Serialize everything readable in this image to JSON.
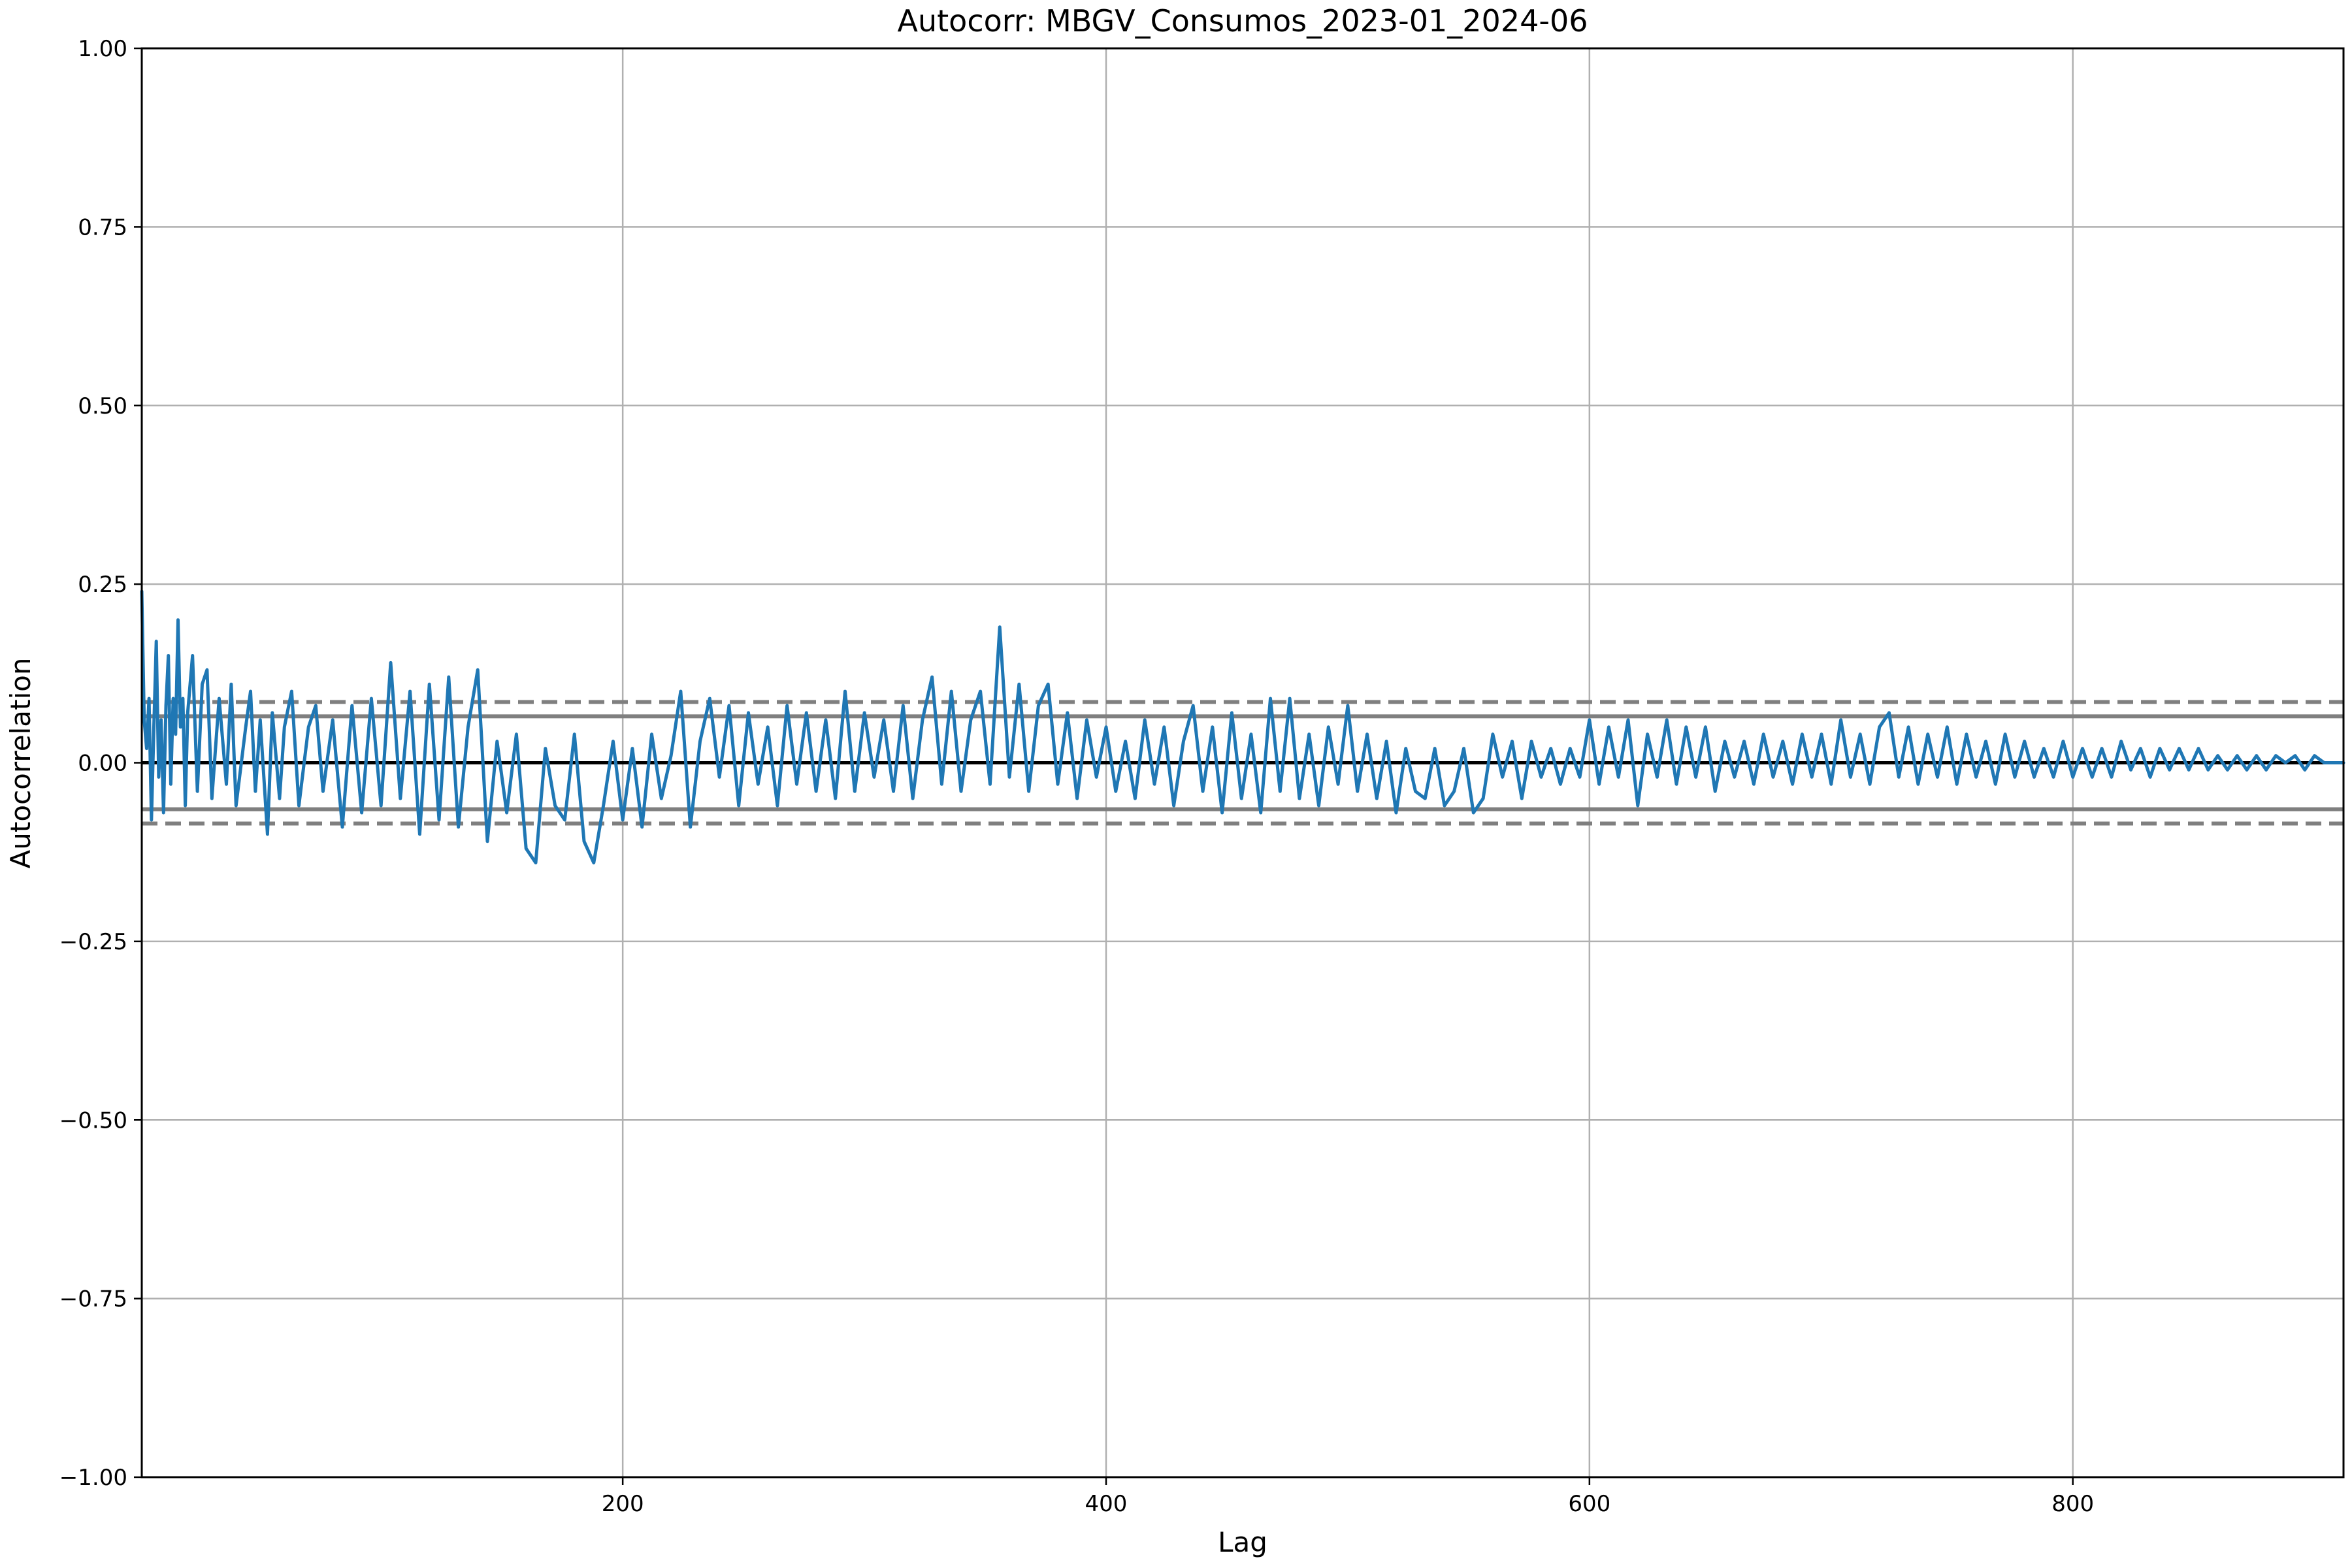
{
  "chart_data": {
    "type": "line",
    "title": "Autocorr: MBGV_Consumos_2023-01_2024-06",
    "xlabel": "Lag",
    "ylabel": "Autocorrelation",
    "xlim": [
      1,
      912
    ],
    "ylim": [
      -1.0,
      1.0
    ],
    "grid": true,
    "x_ticks": [
      {
        "value": 200,
        "label": "200"
      },
      {
        "value": 400,
        "label": "400"
      },
      {
        "value": 600,
        "label": "600"
      },
      {
        "value": 800,
        "label": "800"
      }
    ],
    "y_ticks": [
      {
        "value": 1.0,
        "label": "1.00"
      },
      {
        "value": 0.75,
        "label": "0.75"
      },
      {
        "value": 0.5,
        "label": "0.50"
      },
      {
        "value": 0.25,
        "label": "0.25"
      },
      {
        "value": 0.0,
        "label": "0.00"
      },
      {
        "value": -0.25,
        "label": "−0.25"
      },
      {
        "value": -0.5,
        "label": "−0.50"
      },
      {
        "value": -0.75,
        "label": "−0.75"
      },
      {
        "value": -1.0,
        "label": "−1.00"
      }
    ],
    "reference_lines": [
      {
        "name": "confidence-99-upper",
        "value": 0.085,
        "style": "dashed"
      },
      {
        "name": "confidence-95-upper",
        "value": 0.065,
        "style": "solid"
      },
      {
        "name": "zero",
        "value": 0.0,
        "style": "solid-black"
      },
      {
        "name": "confidence-95-lower",
        "value": -0.065,
        "style": "solid"
      },
      {
        "name": "confidence-99-lower",
        "value": -0.085,
        "style": "dashed"
      }
    ],
    "series": [
      {
        "name": "autocorrelation",
        "color": "#1f77b4",
        "points": [
          [
            1,
            0.24
          ],
          [
            2,
            0.06
          ],
          [
            3,
            0.02
          ],
          [
            4,
            0.09
          ],
          [
            5,
            -0.08
          ],
          [
            6,
            0.05
          ],
          [
            7,
            0.17
          ],
          [
            8,
            -0.02
          ],
          [
            9,
            0.06
          ],
          [
            10,
            -0.07
          ],
          [
            11,
            0.08
          ],
          [
            12,
            0.15
          ],
          [
            13,
            -0.03
          ],
          [
            14,
            0.09
          ],
          [
            15,
            0.04
          ],
          [
            16,
            0.2
          ],
          [
            17,
            0.05
          ],
          [
            18,
            0.09
          ],
          [
            19,
            -0.06
          ],
          [
            20,
            0.07
          ],
          [
            22,
            0.15
          ],
          [
            24,
            -0.04
          ],
          [
            26,
            0.11
          ],
          [
            28,
            0.13
          ],
          [
            30,
            -0.05
          ],
          [
            33,
            0.09
          ],
          [
            36,
            -0.03
          ],
          [
            38,
            0.11
          ],
          [
            40,
            -0.06
          ],
          [
            44,
            0.05
          ],
          [
            46,
            0.1
          ],
          [
            48,
            -0.04
          ],
          [
            50,
            0.06
          ],
          [
            53,
            -0.1
          ],
          [
            55,
            0.07
          ],
          [
            58,
            -0.05
          ],
          [
            60,
            0.05
          ],
          [
            63,
            0.1
          ],
          [
            66,
            -0.06
          ],
          [
            70,
            0.05
          ],
          [
            73,
            0.08
          ],
          [
            76,
            -0.04
          ],
          [
            80,
            0.06
          ],
          [
            84,
            -0.09
          ],
          [
            88,
            0.08
          ],
          [
            92,
            -0.07
          ],
          [
            96,
            0.09
          ],
          [
            100,
            -0.06
          ],
          [
            104,
            0.14
          ],
          [
            108,
            -0.05
          ],
          [
            112,
            0.1
          ],
          [
            116,
            -0.1
          ],
          [
            120,
            0.11
          ],
          [
            124,
            -0.08
          ],
          [
            128,
            0.12
          ],
          [
            132,
            -0.09
          ],
          [
            136,
            0.05
          ],
          [
            140,
            0.13
          ],
          [
            144,
            -0.11
          ],
          [
            148,
            0.03
          ],
          [
            152,
            -0.07
          ],
          [
            156,
            0.04
          ],
          [
            160,
            -0.12
          ],
          [
            164,
            -0.14
          ],
          [
            168,
            0.02
          ],
          [
            172,
            -0.06
          ],
          [
            176,
            -0.08
          ],
          [
            180,
            0.04
          ],
          [
            184,
            -0.11
          ],
          [
            188,
            -0.14
          ],
          [
            192,
            -0.06
          ],
          [
            196,
            0.03
          ],
          [
            200,
            -0.08
          ],
          [
            204,
            0.02
          ],
          [
            208,
            -0.09
          ],
          [
            212,
            0.04
          ],
          [
            216,
            -0.05
          ],
          [
            220,
            0.01
          ],
          [
            224,
            0.1
          ],
          [
            228,
            -0.09
          ],
          [
            232,
            0.03
          ],
          [
            236,
            0.09
          ],
          [
            240,
            -0.02
          ],
          [
            244,
            0.08
          ],
          [
            248,
            -0.06
          ],
          [
            252,
            0.07
          ],
          [
            256,
            -0.03
          ],
          [
            260,
            0.05
          ],
          [
            264,
            -0.06
          ],
          [
            268,
            0.08
          ],
          [
            272,
            -0.03
          ],
          [
            276,
            0.07
          ],
          [
            280,
            -0.04
          ],
          [
            284,
            0.06
          ],
          [
            288,
            -0.05
          ],
          [
            292,
            0.1
          ],
          [
            296,
            -0.04
          ],
          [
            300,
            0.07
          ],
          [
            304,
            -0.02
          ],
          [
            308,
            0.06
          ],
          [
            312,
            -0.04
          ],
          [
            316,
            0.08
          ],
          [
            320,
            -0.05
          ],
          [
            324,
            0.06
          ],
          [
            328,
            0.12
          ],
          [
            332,
            -0.03
          ],
          [
            336,
            0.1
          ],
          [
            340,
            -0.04
          ],
          [
            344,
            0.06
          ],
          [
            348,
            0.1
          ],
          [
            352,
            -0.03
          ],
          [
            356,
            0.19
          ],
          [
            360,
            -0.02
          ],
          [
            364,
            0.11
          ],
          [
            368,
            -0.04
          ],
          [
            372,
            0.08
          ],
          [
            376,
            0.11
          ],
          [
            380,
            -0.03
          ],
          [
            384,
            0.07
          ],
          [
            388,
            -0.05
          ],
          [
            392,
            0.06
          ],
          [
            396,
            -0.02
          ],
          [
            400,
            0.05
          ],
          [
            404,
            -0.04
          ],
          [
            408,
            0.03
          ],
          [
            412,
            -0.05
          ],
          [
            416,
            0.06
          ],
          [
            420,
            -0.03
          ],
          [
            424,
            0.05
          ],
          [
            428,
            -0.06
          ],
          [
            432,
            0.03
          ],
          [
            436,
            0.08
          ],
          [
            440,
            -0.04
          ],
          [
            444,
            0.05
          ],
          [
            448,
            -0.07
          ],
          [
            452,
            0.07
          ],
          [
            456,
            -0.05
          ],
          [
            460,
            0.04
          ],
          [
            464,
            -0.07
          ],
          [
            468,
            0.09
          ],
          [
            472,
            -0.04
          ],
          [
            476,
            0.09
          ],
          [
            480,
            -0.05
          ],
          [
            484,
            0.04
          ],
          [
            488,
            -0.06
          ],
          [
            492,
            0.05
          ],
          [
            496,
            -0.03
          ],
          [
            500,
            0.08
          ],
          [
            504,
            -0.04
          ],
          [
            508,
            0.04
          ],
          [
            512,
            -0.05
          ],
          [
            516,
            0.03
          ],
          [
            520,
            -0.07
          ],
          [
            524,
            0.02
          ],
          [
            528,
            -0.04
          ],
          [
            532,
            -0.05
          ],
          [
            536,
            0.02
          ],
          [
            540,
            -0.06
          ],
          [
            544,
            -0.04
          ],
          [
            548,
            0.02
          ],
          [
            552,
            -0.07
          ],
          [
            556,
            -0.05
          ],
          [
            560,
            0.04
          ],
          [
            564,
            -0.02
          ],
          [
            568,
            0.03
          ],
          [
            572,
            -0.05
          ],
          [
            576,
            0.03
          ],
          [
            580,
            -0.02
          ],
          [
            584,
            0.02
          ],
          [
            588,
            -0.03
          ],
          [
            592,
            0.02
          ],
          [
            596,
            -0.02
          ],
          [
            600,
            0.06
          ],
          [
            604,
            -0.03
          ],
          [
            608,
            0.05
          ],
          [
            612,
            -0.02
          ],
          [
            616,
            0.06
          ],
          [
            620,
            -0.06
          ],
          [
            624,
            0.04
          ],
          [
            628,
            -0.02
          ],
          [
            632,
            0.06
          ],
          [
            636,
            -0.03
          ],
          [
            640,
            0.05
          ],
          [
            644,
            -0.02
          ],
          [
            648,
            0.05
          ],
          [
            652,
            -0.04
          ],
          [
            656,
            0.03
          ],
          [
            660,
            -0.02
          ],
          [
            664,
            0.03
          ],
          [
            668,
            -0.03
          ],
          [
            672,
            0.04
          ],
          [
            676,
            -0.02
          ],
          [
            680,
            0.03
          ],
          [
            684,
            -0.03
          ],
          [
            688,
            0.04
          ],
          [
            692,
            -0.02
          ],
          [
            696,
            0.04
          ],
          [
            700,
            -0.03
          ],
          [
            704,
            0.06
          ],
          [
            708,
            -0.02
          ],
          [
            712,
            0.04
          ],
          [
            716,
            -0.03
          ],
          [
            720,
            0.05
          ],
          [
            724,
            0.07
          ],
          [
            728,
            -0.02
          ],
          [
            732,
            0.05
          ],
          [
            736,
            -0.03
          ],
          [
            740,
            0.04
          ],
          [
            744,
            -0.02
          ],
          [
            748,
            0.05
          ],
          [
            752,
            -0.03
          ],
          [
            756,
            0.04
          ],
          [
            760,
            -0.02
          ],
          [
            764,
            0.03
          ],
          [
            768,
            -0.03
          ],
          [
            772,
            0.04
          ],
          [
            776,
            -0.02
          ],
          [
            780,
            0.03
          ],
          [
            784,
            -0.02
          ],
          [
            788,
            0.02
          ],
          [
            792,
            -0.02
          ],
          [
            796,
            0.03
          ],
          [
            800,
            -0.02
          ],
          [
            804,
            0.02
          ],
          [
            808,
            -0.02
          ],
          [
            812,
            0.02
          ],
          [
            816,
            -0.02
          ],
          [
            820,
            0.03
          ],
          [
            824,
            -0.01
          ],
          [
            828,
            0.02
          ],
          [
            832,
            -0.02
          ],
          [
            836,
            0.02
          ],
          [
            840,
            -0.01
          ],
          [
            844,
            0.02
          ],
          [
            848,
            -0.01
          ],
          [
            852,
            0.02
          ],
          [
            856,
            -0.01
          ],
          [
            860,
            0.01
          ],
          [
            864,
            -0.01
          ],
          [
            868,
            0.01
          ],
          [
            872,
            -0.01
          ],
          [
            876,
            0.01
          ],
          [
            880,
            -0.01
          ],
          [
            884,
            0.01
          ],
          [
            888,
            0.0
          ],
          [
            892,
            0.01
          ],
          [
            896,
            -0.01
          ],
          [
            900,
            0.01
          ],
          [
            904,
            0.0
          ],
          [
            908,
            0.0
          ],
          [
            912,
            0.0
          ]
        ]
      }
    ]
  }
}
